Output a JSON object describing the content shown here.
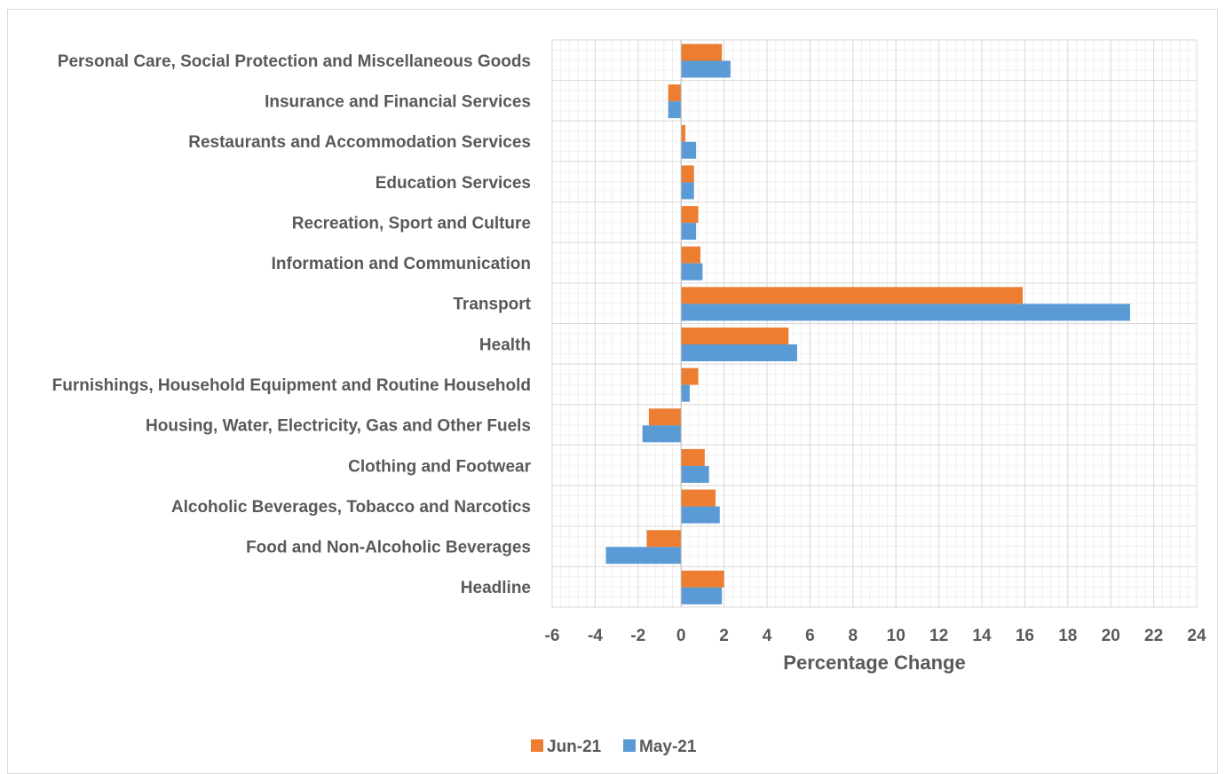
{
  "chart_data": {
    "type": "bar",
    "orientation": "horizontal",
    "categories": [
      "Personal Care, Social Protection and Miscellaneous Goods",
      "Insurance and Financial Services",
      "Restaurants and Accommodation Services",
      "Education Services",
      "Recreation, Sport and Culture",
      "Information and Communication",
      "Transport",
      "Health",
      "Furnishings, Household Equipment and Routine Household",
      "Housing, Water, Electricity, Gas and Other Fuels",
      "Clothing and Footwear",
      "Alcoholic Beverages, Tobacco and Narcotics",
      "Food and Non-Alcoholic Beverages",
      "Headline"
    ],
    "series": [
      {
        "name": "Jun-21",
        "color": "#ED7D31",
        "values": [
          1.9,
          -0.6,
          0.2,
          0.6,
          0.8,
          0.9,
          15.9,
          5.0,
          0.8,
          -1.5,
          1.1,
          1.6,
          -1.6,
          2.0
        ]
      },
      {
        "name": "May-21",
        "color": "#5B9BD5",
        "values": [
          2.3,
          -0.6,
          0.7,
          0.6,
          0.7,
          1.0,
          20.9,
          5.4,
          0.4,
          -1.8,
          1.3,
          1.8,
          -3.5,
          1.9
        ]
      }
    ],
    "xlabel": "Percentage Change",
    "ylabel": "",
    "xlim": [
      -6,
      24
    ],
    "xticks": [
      "-6",
      "-4",
      "-2",
      "0",
      "2",
      "4",
      "6",
      "8",
      "10",
      "12",
      "14",
      "16",
      "18",
      "20",
      "22",
      "24"
    ],
    "xtick_step": 2,
    "grid": true,
    "legend_position": "bottom"
  }
}
